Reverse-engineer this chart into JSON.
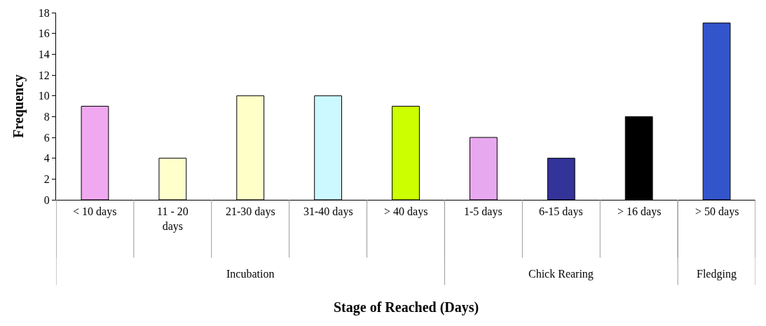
{
  "chart_data": {
    "type": "bar",
    "xlabel": "Stage of Reached (Days)",
    "ylabel": "Frequency",
    "categories": [
      "< 10 days",
      "11 - 20 days",
      "21-30 days",
      "31-40 days",
      "> 40 days",
      "1-5 days",
      "6-15 days",
      "> 16 days",
      "> 50 days"
    ],
    "values": [
      9,
      4,
      10,
      10,
      9,
      6,
      4,
      8,
      17
    ],
    "colors": [
      "#f0a8f0",
      "#ffffcc",
      "#ffffc8",
      "#ccf8ff",
      "#ccff00",
      "#e8a8f0",
      "#333399",
      "#000000",
      "#3355cc"
    ],
    "ylim": [
      0,
      18
    ],
    "yticks": [
      0,
      2,
      4,
      6,
      8,
      10,
      12,
      14,
      16,
      18
    ],
    "annotations": [
      "Incubation",
      "Chick Rearing",
      "Fledging"
    ]
  }
}
